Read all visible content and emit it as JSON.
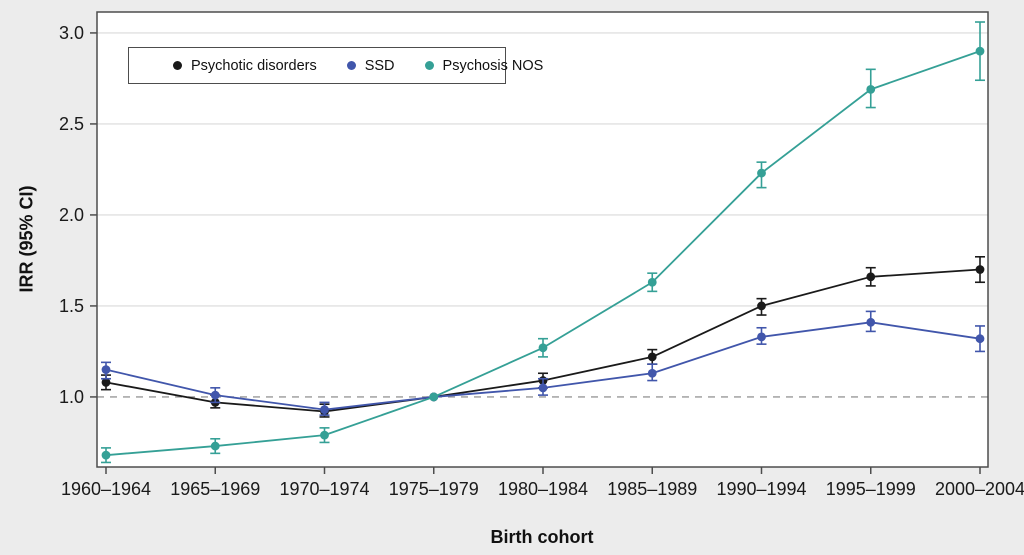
{
  "figure": {
    "background_color": "#ececec",
    "plot_background_color": "#ffffff",
    "border_color": "#4d4d4d",
    "grid_color": "#d9d9d9",
    "reference_line_color": "#999999",
    "text_color": "#1a1a1a"
  },
  "chart_data": {
    "type": "line",
    "title": "",
    "xlabel": "Birth cohort",
    "ylabel": "IRR (95% CI)",
    "categories": [
      "1960–1964",
      "1965–1969",
      "1970–1974",
      "1975–1979",
      "1980–1984",
      "1985–1989",
      "1990–1994",
      "1995–1999",
      "2000–2004"
    ],
    "y_ticks": [
      1.0,
      1.5,
      2.0,
      2.5,
      3.0
    ],
    "y_tick_labels": [
      "1.0",
      "1.5",
      "2.0",
      "2.5",
      "3.0"
    ],
    "ylim": [
      0.615,
      3.115
    ],
    "grid": true,
    "legend_position": "top-left",
    "reference_line": 1.0,
    "reference_category": "1975–1979",
    "series": [
      {
        "name": "Psychotic disorders",
        "color": "#1a1a1a",
        "values": [
          1.08,
          0.97,
          0.92,
          1.0,
          1.09,
          1.22,
          1.5,
          1.66,
          1.7
        ],
        "ci_low": [
          1.04,
          0.94,
          0.89,
          1.0,
          1.05,
          1.18,
          1.45,
          1.61,
          1.63
        ],
        "ci_high": [
          1.12,
          1.01,
          0.96,
          1.0,
          1.13,
          1.26,
          1.54,
          1.71,
          1.77
        ]
      },
      {
        "name": "SSD",
        "color": "#4156ab",
        "values": [
          1.15,
          1.01,
          0.93,
          1.0,
          1.05,
          1.13,
          1.33,
          1.41,
          1.32
        ],
        "ci_low": [
          1.1,
          0.97,
          0.9,
          1.0,
          1.01,
          1.09,
          1.29,
          1.36,
          1.25
        ],
        "ci_high": [
          1.19,
          1.05,
          0.97,
          1.0,
          1.1,
          1.18,
          1.38,
          1.47,
          1.39
        ]
      },
      {
        "name": "Psychosis NOS",
        "color": "#35a096",
        "values": [
          0.68,
          0.73,
          0.79,
          1.0,
          1.27,
          1.63,
          2.23,
          2.69,
          2.9
        ],
        "ci_low": [
          0.64,
          0.69,
          0.75,
          1.0,
          1.22,
          1.58,
          2.15,
          2.59,
          2.74
        ],
        "ci_high": [
          0.72,
          0.77,
          0.83,
          1.0,
          1.32,
          1.68,
          2.29,
          2.8,
          3.06
        ]
      }
    ]
  }
}
